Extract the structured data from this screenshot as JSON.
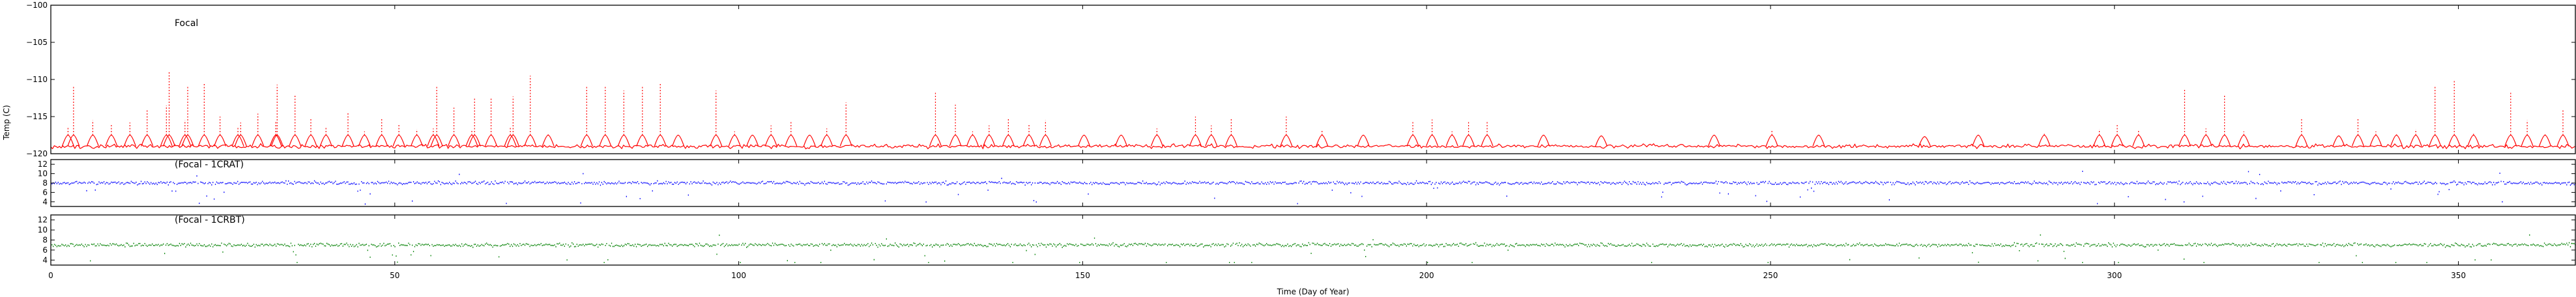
{
  "chart_data": [
    {
      "type": "line",
      "title": "Focal",
      "xlabel": "",
      "ylabel": "Temp (C)",
      "xlim": [
        0,
        367
      ],
      "ylim": [
        -120,
        -100
      ],
      "yticks": [
        -120,
        -115,
        -110,
        -105,
        -100
      ],
      "ytick_labels": [
        "−120",
        "−115",
        "−110",
        "−105",
        "−100"
      ],
      "grid": false,
      "series": [
        {
          "color": "#ff0000",
          "baseline": -119,
          "spikes": [
            {
              "x": 2.5,
              "y": -116.5
            },
            {
              "x": 3.3,
              "y": -111.0
            },
            {
              "x": 6.1,
              "y": -115.5
            },
            {
              "x": 8.8,
              "y": -116.0
            },
            {
              "x": 11.5,
              "y": -115.8
            },
            {
              "x": 14.0,
              "y": -114.0
            },
            {
              "x": 16.8,
              "y": -113.5
            },
            {
              "x": 17.2,
              "y": -109.0
            },
            {
              "x": 19.5,
              "y": -115.5
            },
            {
              "x": 19.9,
              "y": -110.8
            },
            {
              "x": 22.3,
              "y": -110.4
            },
            {
              "x": 24.6,
              "y": -115.0
            },
            {
              "x": 27.2,
              "y": -116.5
            },
            {
              "x": 27.6,
              "y": -115.8
            },
            {
              "x": 30.1,
              "y": -114.6
            },
            {
              "x": 32.7,
              "y": -115.6
            },
            {
              "x": 32.7,
              "y": -116.7
            },
            {
              "x": 32.9,
              "y": -110.7
            },
            {
              "x": 35.5,
              "y": -112.0
            },
            {
              "x": 37.8,
              "y": -115.3
            },
            {
              "x": 40.0,
              "y": -116.4
            },
            {
              "x": 43.2,
              "y": -114.5
            },
            {
              "x": 45.6,
              "y": -117.0
            },
            {
              "x": 48.1,
              "y": -115.3
            },
            {
              "x": 50.6,
              "y": -116.0
            },
            {
              "x": 53.2,
              "y": -116.7
            },
            {
              "x": 55.6,
              "y": -116.6
            },
            {
              "x": 56.1,
              "y": -110.8
            },
            {
              "x": 58.6,
              "y": -113.8
            },
            {
              "x": 61.2,
              "y": -116.8
            },
            {
              "x": 61.6,
              "y": -112.5
            },
            {
              "x": 64.0,
              "y": -112.5
            },
            {
              "x": 66.8,
              "y": -116.5
            },
            {
              "x": 67.2,
              "y": -112.3
            },
            {
              "x": 69.7,
              "y": -109.5
            },
            {
              "x": 72.3,
              "y": -117.4
            },
            {
              "x": 77.9,
              "y": -110.8
            },
            {
              "x": 80.6,
              "y": -111.0
            },
            {
              "x": 83.3,
              "y": -111.5
            },
            {
              "x": 86.0,
              "y": -111.0
            },
            {
              "x": 88.6,
              "y": -110.5
            },
            {
              "x": 91.2,
              "y": -117.5
            },
            {
              "x": 96.7,
              "y": -111.5
            },
            {
              "x": 99.4,
              "y": -117.0
            },
            {
              "x": 102.0,
              "y": -117.5
            },
            {
              "x": 104.7,
              "y": -116.2
            },
            {
              "x": 107.6,
              "y": -115.7
            },
            {
              "x": 110.3,
              "y": -117.5
            },
            {
              "x": 112.8,
              "y": -116.6
            },
            {
              "x": 115.6,
              "y": -113.1
            },
            {
              "x": 128.6,
              "y": -111.8
            },
            {
              "x": 131.5,
              "y": -113.4
            },
            {
              "x": 134.0,
              "y": -117.0
            },
            {
              "x": 136.4,
              "y": -116.2
            },
            {
              "x": 139.2,
              "y": -115.3
            },
            {
              "x": 142.2,
              "y": -116.0
            },
            {
              "x": 144.6,
              "y": -115.5
            },
            {
              "x": 150.2,
              "y": -117.5
            },
            {
              "x": 155.6,
              "y": -117.5
            },
            {
              "x": 160.8,
              "y": -116.6
            },
            {
              "x": 166.4,
              "y": -115.0
            },
            {
              "x": 168.7,
              "y": -116.2
            },
            {
              "x": 171.6,
              "y": -115.3
            },
            {
              "x": 179.6,
              "y": -115.0
            },
            {
              "x": 184.8,
              "y": -116.8
            },
            {
              "x": 190.8,
              "y": -117.5
            },
            {
              "x": 198.0,
              "y": -115.6
            },
            {
              "x": 200.8,
              "y": -115.4
            },
            {
              "x": 203.7,
              "y": -117.0
            },
            {
              "x": 206.1,
              "y": -115.6
            },
            {
              "x": 208.8,
              "y": -115.6
            },
            {
              "x": 217.0,
              "y": -117.5
            },
            {
              "x": 225.4,
              "y": -117.6
            },
            {
              "x": 241.8,
              "y": -117.5
            },
            {
              "x": 250.2,
              "y": -116.8
            },
            {
              "x": 257.0,
              "y": -117.5
            },
            {
              "x": 272.4,
              "y": -117.7
            },
            {
              "x": 280.2,
              "y": -117.5
            },
            {
              "x": 289.8,
              "y": -117.2
            },
            {
              "x": 297.8,
              "y": -116.7
            },
            {
              "x": 300.4,
              "y": -116.0
            },
            {
              "x": 303.5,
              "y": -116.8
            },
            {
              "x": 310.2,
              "y": -111.3
            },
            {
              "x": 313.3,
              "y": -116.6
            },
            {
              "x": 316.0,
              "y": -112.0
            },
            {
              "x": 318.8,
              "y": -117.0
            },
            {
              "x": 327.2,
              "y": -115.2
            },
            {
              "x": 332.6,
              "y": -117.6
            },
            {
              "x": 335.4,
              "y": -115.2
            },
            {
              "x": 338.0,
              "y": -117.0
            },
            {
              "x": 341.0,
              "y": -117.4
            },
            {
              "x": 343.8,
              "y": -116.7
            },
            {
              "x": 346.6,
              "y": -111.0
            },
            {
              "x": 349.4,
              "y": -110.2
            },
            {
              "x": 352.2,
              "y": -117.2
            },
            {
              "x": 357.6,
              "y": -111.7
            },
            {
              "x": 360.0,
              "y": -115.5
            },
            {
              "x": 362.6,
              "y": -117.4
            },
            {
              "x": 365.2,
              "y": -114.0
            }
          ]
        }
      ]
    },
    {
      "type": "scatter",
      "title": "(Focal - 1CRAT)",
      "xlim": [
        0,
        367
      ],
      "ylim": [
        3,
        13
      ],
      "yticks": [
        4,
        6,
        8,
        10,
        12
      ],
      "ytick_labels": [
        "4",
        "6",
        "8",
        "10",
        "12"
      ],
      "grid": false,
      "series": [
        {
          "color": "#0000ff",
          "typical_value": 8,
          "range": [
            3.5,
            10.5
          ]
        }
      ]
    },
    {
      "type": "scatter",
      "title": "(Focal - 1CRBT)",
      "xlabel": "Time (Day of Year)",
      "xlim": [
        0,
        367
      ],
      "ylim": [
        3,
        13
      ],
      "xticks": [
        0,
        50,
        100,
        150,
        200,
        250,
        300,
        350
      ],
      "xtick_labels": [
        "0",
        "50",
        "100",
        "150",
        "200",
        "250",
        "300",
        "350"
      ],
      "yticks": [
        4,
        6,
        8,
        10,
        12
      ],
      "ytick_labels": [
        "4",
        "6",
        "8",
        "10",
        "12"
      ],
      "grid": false,
      "series": [
        {
          "color": "#008000",
          "typical_value": 7,
          "range": [
            3.5,
            9
          ]
        }
      ]
    }
  ]
}
